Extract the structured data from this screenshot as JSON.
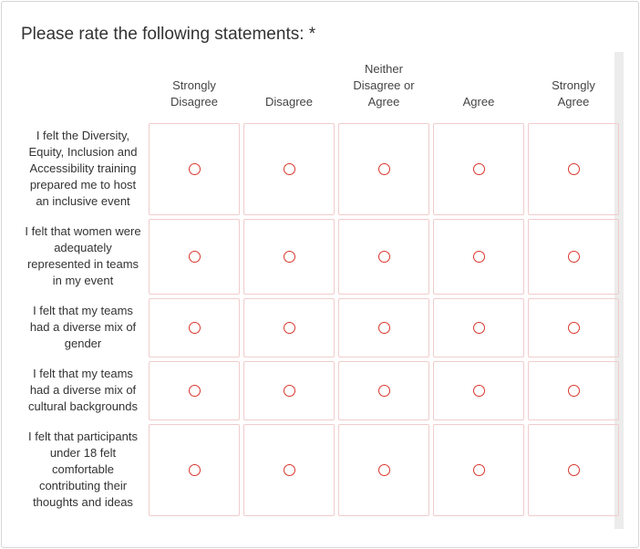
{
  "question": "Please rate the following statements: *",
  "columns": [
    "Strongly Disagree",
    "Disagree",
    "Neither Disagree or Agree",
    "Agree",
    "Strongly Agree"
  ],
  "rows": [
    "I felt the Diversity, Equity, Inclusion and Accessibility training prepared me to host an inclusive event",
    "I felt that women were adequately represented in teams in my event",
    "I felt that my teams had a diverse mix of gender",
    "I felt that my teams had a diverse mix of cultural backgrounds",
    "I felt that participants under 18 felt comfortable contributing their thoughts and ideas"
  ]
}
